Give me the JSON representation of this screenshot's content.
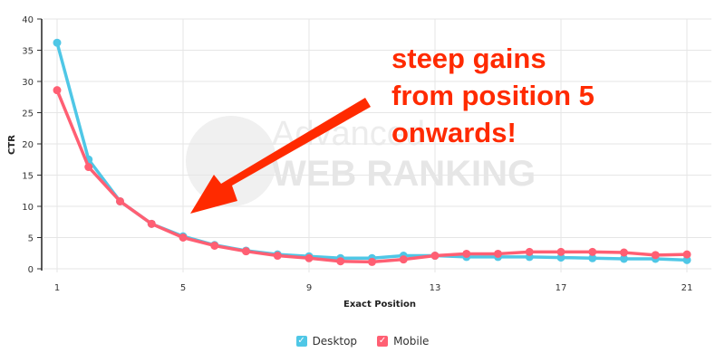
{
  "chart_data": {
    "type": "line",
    "xlabel": "Exact Position",
    "ylabel": "CTR",
    "xlim": [
      1,
      21
    ],
    "ylim": [
      0,
      40
    ],
    "x_ticks": [
      1,
      5,
      9,
      13,
      17,
      21
    ],
    "y_ticks": [
      0,
      5,
      10,
      15,
      20,
      25,
      30,
      35,
      40
    ],
    "grid": true,
    "legend_position": "bottom",
    "x": [
      1,
      2,
      3,
      4,
      5,
      6,
      7,
      8,
      9,
      10,
      11,
      12,
      13,
      14,
      15,
      16,
      17,
      18,
      19,
      20,
      21
    ],
    "series": [
      {
        "name": "Desktop",
        "color": "#4fc7e6",
        "values": [
          36.2,
          17.5,
          10.8,
          7.2,
          5.2,
          3.8,
          2.9,
          2.3,
          2.0,
          1.7,
          1.7,
          2.1,
          2.1,
          1.9,
          1.9,
          1.9,
          1.8,
          1.7,
          1.6,
          1.6,
          1.4
        ]
      },
      {
        "name": "Mobile",
        "color": "#ff5f73",
        "values": [
          28.6,
          16.3,
          10.8,
          7.2,
          5.0,
          3.7,
          2.8,
          2.1,
          1.7,
          1.2,
          1.1,
          1.5,
          2.1,
          2.4,
          2.4,
          2.7,
          2.7,
          2.7,
          2.6,
          2.2,
          2.3
        ]
      }
    ],
    "annotation": "steep gains from position 5 onwards!",
    "annotation_lines": [
      "steep gains",
      "from position 5",
      "onwards!"
    ],
    "annotation_color": "#ff2a00",
    "watermark": "Advanced WEB RANKING"
  }
}
